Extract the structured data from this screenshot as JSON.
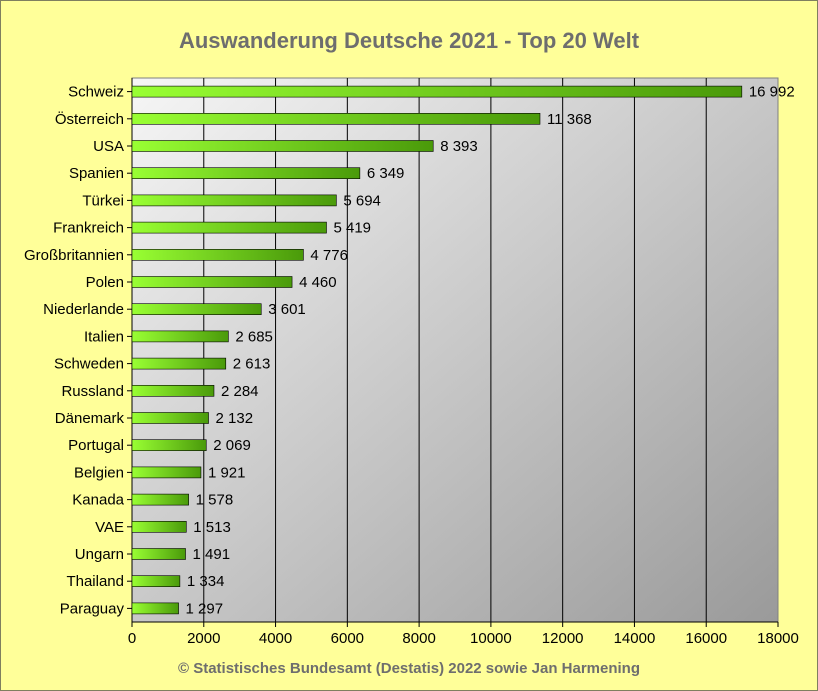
{
  "title": "Auswanderung Deutsche 2021 - Top 20 Welt",
  "footer": "© Statistisches Bundesamt (Destatis) 2022 sowie Jan Harmening",
  "colors": {
    "background": "#ffff99",
    "bar_start": "#99ff33",
    "bar_end": "#4a9a0a",
    "plot_light": "#f6f6f6",
    "plot_dark": "#9a9a9a",
    "title": "#6e6e6e"
  },
  "chart_data": {
    "type": "bar",
    "orientation": "horizontal",
    "title": "Auswanderung Deutsche 2021 - Top 20 Welt",
    "xlabel": "",
    "ylabel": "",
    "xlim": [
      0,
      18000
    ],
    "grid": true,
    "x_ticks": [
      0,
      2000,
      4000,
      6000,
      8000,
      10000,
      12000,
      14000,
      16000,
      18000
    ],
    "x_tick_labels": [
      "0",
      "2000",
      "4000",
      "6000",
      "8000",
      "10000",
      "12000",
      "14000",
      "16000",
      "18000"
    ],
    "categories": [
      "Schweiz",
      "Österreich",
      "USA",
      "Spanien",
      "Türkei",
      "Frankreich",
      "Großbritannien",
      "Polen",
      "Niederlande",
      "Italien",
      "Schweden",
      "Russland",
      "Dänemark",
      "Portugal",
      "Belgien",
      "Kanada",
      "VAE",
      "Ungarn",
      "Thailand",
      "Paraguay"
    ],
    "values": [
      16992,
      11368,
      8393,
      6349,
      5694,
      5419,
      4776,
      4460,
      3601,
      2685,
      2613,
      2284,
      2132,
      2069,
      1921,
      1578,
      1513,
      1491,
      1334,
      1297
    ],
    "value_labels": [
      "16 992",
      "11 368",
      "8 393",
      "6 349",
      "5 694",
      "5 419",
      "4 776",
      "4 460",
      "3 601",
      "2 685",
      "2 613",
      "2 284",
      "2 132",
      "2 069",
      "1 921",
      "1 578",
      "1 513",
      "1 491",
      "1 334",
      "1 297"
    ]
  }
}
